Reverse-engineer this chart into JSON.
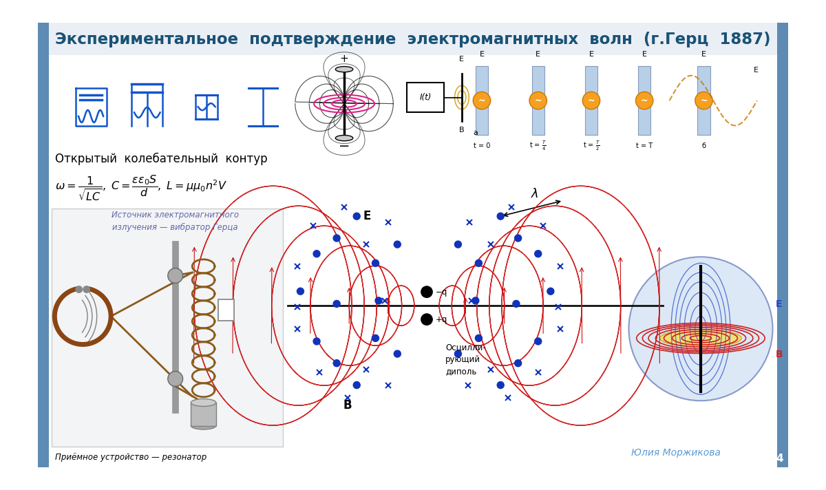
{
  "title": "Экспериментальное  подтверждение  электромагнитных  волн  (г.Герц  1887)",
  "title_color": "#1a5276",
  "title_fontsize": 16.5,
  "bg_color": "#ffffff",
  "border_color": "#5d8bb3",
  "slide_number": "4",
  "text_open_circuit": "Открытый  колебательный  контур",
  "text_source": "Источник электромагнитного\nизлучения — вибратор Герца",
  "text_receiver": "Приёмное устройство — резонатор",
  "text_author": "Юлия Моржикова",
  "text_oscillating": "Осцилли-\nрующий\nдиполь",
  "field_line_color": "#cc1111",
  "dot_color": "#1133bb",
  "cross_color": "#1133bb",
  "axis_color": "#111111"
}
